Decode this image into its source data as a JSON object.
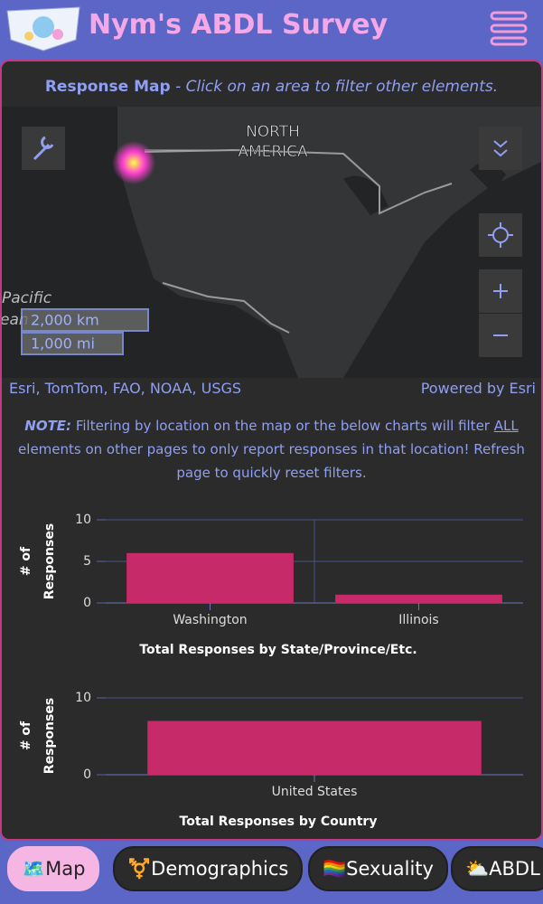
{
  "header": {
    "title": "Nym's ABDL Survey"
  },
  "map": {
    "heading": "Response Map",
    "instruction": " - Click on an area to filter other elements.",
    "continent_label": [
      "NORTH",
      "AMERICA"
    ],
    "ocean_label": [
      "Pacific",
      "ean"
    ],
    "scale_km": "2,000 km",
    "scale_mi": "1,000 mi",
    "attribution": "Esri, TomTom, FAO, NOAA, USGS",
    "powered_by": "Powered by Esri"
  },
  "note": {
    "label": "NOTE:",
    "text_before": " Filtering by location on the map or the below charts will filter ",
    "emphasis": "ALL",
    "text_after": " elements on other pages to only report responses in that location! Refresh page to quickly reset filters."
  },
  "chart_data": [
    {
      "type": "bar",
      "title": "Total Responses by State/Province/Etc.",
      "y_label": "# of Responses",
      "categories": [
        "Washington",
        "Illinois"
      ],
      "values": [
        6,
        1
      ],
      "color": "#c62a69",
      "ylim": [
        0,
        10
      ],
      "yticks": [
        0,
        5,
        10
      ],
      "grid": true
    },
    {
      "type": "bar",
      "title": "Total Responses by Country",
      "y_label": "# of Responses",
      "categories": [
        "United States"
      ],
      "values": [
        7
      ],
      "color": "#c62a69",
      "ylim": [
        0,
        10
      ],
      "yticks": [
        0,
        10
      ],
      "grid": true
    }
  ],
  "nav": [
    "🗺️Map",
    "⚧️Demographics",
    "🏳️‍🌈Sexuality",
    "⛅ABDL"
  ]
}
